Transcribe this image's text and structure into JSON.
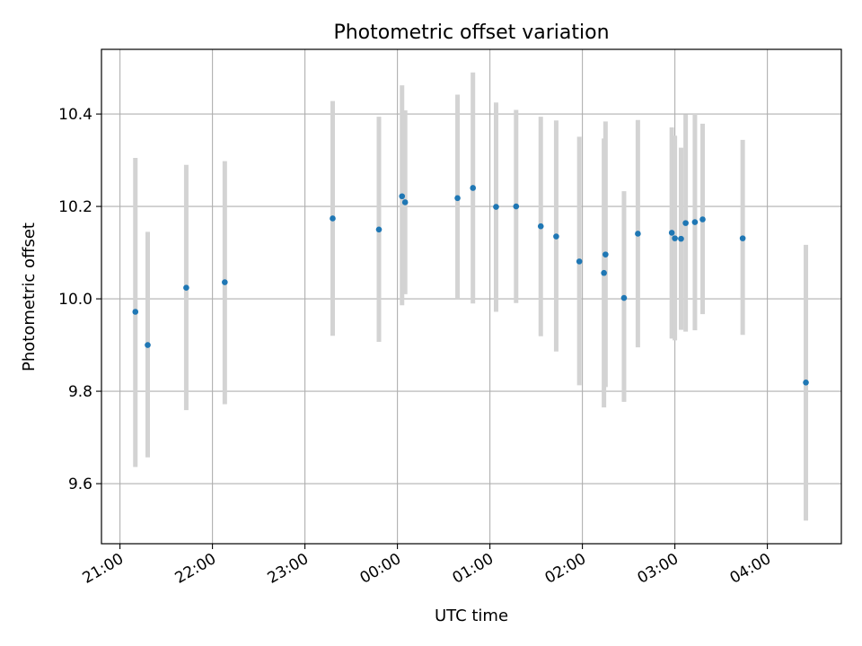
{
  "chart_data": {
    "type": "scatter",
    "title": "Photometric offset variation",
    "xlabel": "UTC time",
    "ylabel": "Photometric offset",
    "x_axis": "time (hours since 21:00 UTC, wrapping past midnight)",
    "xlim_hours": [
      -0.2,
      7.8
    ],
    "ylim": [
      9.47,
      10.54
    ],
    "grid": true,
    "x_ticks": [
      {
        "h": 0,
        "label": "21:00"
      },
      {
        "h": 1,
        "label": "22:00"
      },
      {
        "h": 2,
        "label": "23:00"
      },
      {
        "h": 3,
        "label": "00:00"
      },
      {
        "h": 4,
        "label": "01:00"
      },
      {
        "h": 5,
        "label": "02:00"
      },
      {
        "h": 6,
        "label": "03:00"
      },
      {
        "h": 7,
        "label": "04:00"
      }
    ],
    "y_ticks": [
      {
        "v": 9.6,
        "label": "9.6"
      },
      {
        "v": 9.8,
        "label": "9.8"
      },
      {
        "v": 10.0,
        "label": "10.0"
      },
      {
        "v": 10.2,
        "label": "10.2"
      },
      {
        "v": 10.4,
        "label": "10.4"
      }
    ],
    "marker_color": "#1f77b4",
    "errorbar_color": "#d3d3d3",
    "points": [
      {
        "t": "21:10",
        "y": 9.972,
        "lo": 9.636,
        "hi": 10.305
      },
      {
        "t": "21:18",
        "y": 9.9,
        "lo": 9.657,
        "hi": 10.145
      },
      {
        "t": "21:43",
        "y": 10.024,
        "lo": 9.759,
        "hi": 10.29
      },
      {
        "t": "22:08",
        "y": 10.036,
        "lo": 9.772,
        "hi": 10.298
      },
      {
        "t": "23:18",
        "y": 10.174,
        "lo": 9.92,
        "hi": 10.428
      },
      {
        "t": "23:48",
        "y": 10.15,
        "lo": 9.907,
        "hi": 10.394
      },
      {
        "t": "00:03",
        "y": 10.222,
        "lo": 9.986,
        "hi": 10.462
      },
      {
        "t": "00:05",
        "y": 10.209,
        "lo": 10.01,
        "hi": 10.408
      },
      {
        "t": "00:39",
        "y": 10.218,
        "lo": 10.0,
        "hi": 10.442
      },
      {
        "t": "00:49",
        "y": 10.24,
        "lo": 9.99,
        "hi": 10.49
      },
      {
        "t": "01:04",
        "y": 10.199,
        "lo": 9.972,
        "hi": 10.425
      },
      {
        "t": "01:17",
        "y": 10.2,
        "lo": 9.991,
        "hi": 10.409
      },
      {
        "t": "01:33",
        "y": 10.157,
        "lo": 9.919,
        "hi": 10.394
      },
      {
        "t": "01:43",
        "y": 10.135,
        "lo": 9.886,
        "hi": 10.386
      },
      {
        "t": "01:58",
        "y": 10.081,
        "lo": 9.813,
        "hi": 10.351
      },
      {
        "t": "02:14",
        "y": 10.056,
        "lo": 9.765,
        "hi": 10.347
      },
      {
        "t": "02:15",
        "y": 10.096,
        "lo": 9.809,
        "hi": 10.384
      },
      {
        "t": "02:27",
        "y": 10.002,
        "lo": 9.777,
        "hi": 10.233
      },
      {
        "t": "02:36",
        "y": 10.141,
        "lo": 9.895,
        "hi": 10.387
      },
      {
        "t": "02:58",
        "y": 10.143,
        "lo": 9.914,
        "hi": 10.371
      },
      {
        "t": "03:00",
        "y": 10.131,
        "lo": 9.91,
        "hi": 10.353
      },
      {
        "t": "03:04",
        "y": 10.13,
        "lo": 9.933,
        "hi": 10.327
      },
      {
        "t": "03:07",
        "y": 10.164,
        "lo": 9.929,
        "hi": 10.399
      },
      {
        "t": "03:13",
        "y": 10.166,
        "lo": 9.932,
        "hi": 10.402
      },
      {
        "t": "03:18",
        "y": 10.172,
        "lo": 9.967,
        "hi": 10.379
      },
      {
        "t": "03:44",
        "y": 10.131,
        "lo": 9.922,
        "hi": 10.344
      },
      {
        "t": "04:25",
        "y": 9.819,
        "lo": 9.52,
        "hi": 10.117
      }
    ]
  }
}
